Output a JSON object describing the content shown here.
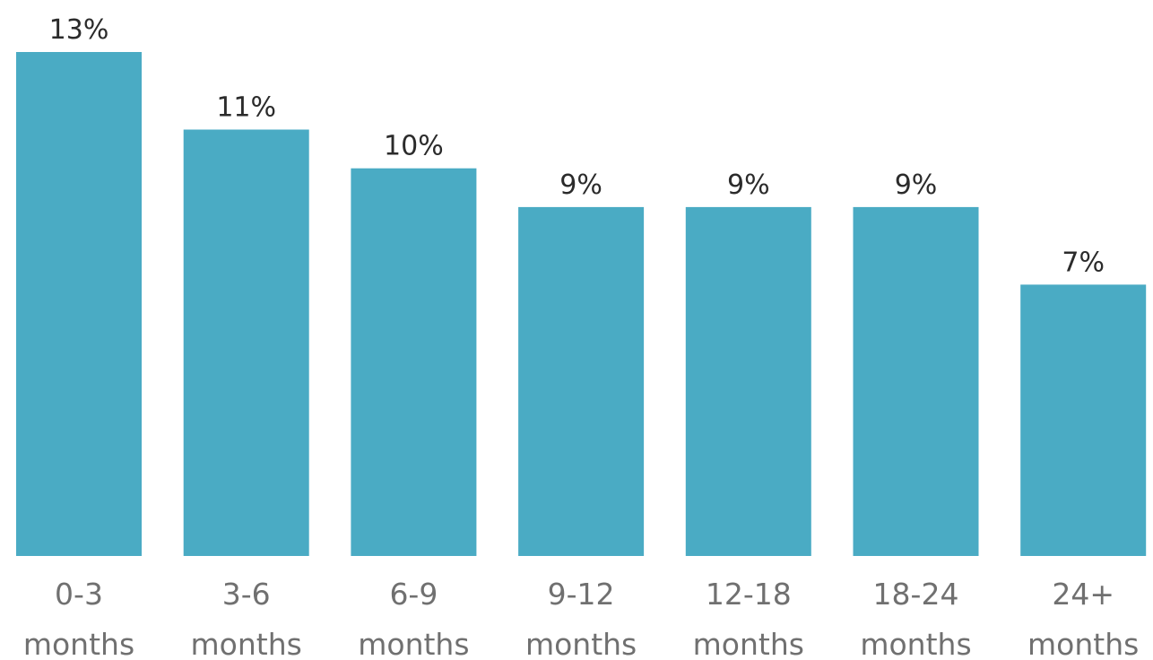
{
  "chart_data": {
    "type": "bar",
    "categories": [
      [
        "0-3",
        "months"
      ],
      [
        "3-6",
        "months"
      ],
      [
        "6-9",
        "months"
      ],
      [
        "9-12",
        "months"
      ],
      [
        "12-18",
        "months"
      ],
      [
        "18-24",
        "months"
      ],
      [
        "24+",
        "months"
      ]
    ],
    "values": [
      13,
      11,
      10,
      9,
      9,
      9,
      7
    ],
    "data_labels": [
      "13%",
      "11%",
      "10%",
      "9%",
      "9%",
      "9%",
      "7%"
    ],
    "bar_color": "#4aabc4",
    "title": "",
    "xlabel": "",
    "ylabel": "",
    "grid": false,
    "legend": "none"
  }
}
